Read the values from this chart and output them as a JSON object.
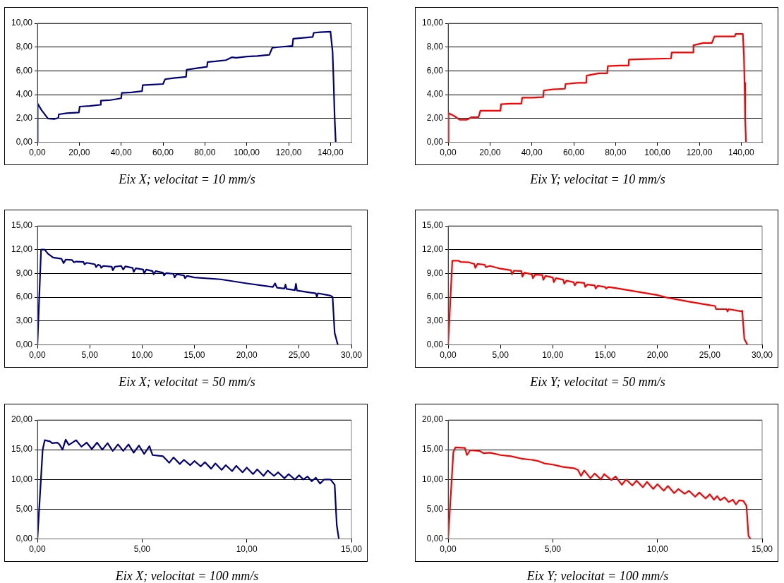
{
  "chart_data": [
    {
      "type": "line",
      "title": "Eix X; velocitat = 10 mm/s",
      "grid": "y",
      "x": [
        0,
        0.1,
        2,
        5,
        8,
        10,
        10.2,
        14,
        19.8,
        20.2,
        25,
        30,
        30.3,
        35,
        40,
        40.3,
        45,
        50,
        50.3,
        55,
        60,
        61,
        65,
        71,
        71.3,
        75,
        81,
        81.3,
        85,
        90,
        93,
        95,
        100,
        105,
        110.8,
        112.2,
        115,
        121.8,
        122.2,
        125,
        131.5,
        132,
        135,
        140,
        141,
        141.5,
        142,
        142.5
      ],
      "series": [
        {
          "color": "#000080",
          "values": [
            0,
            3.25,
            2.7,
            2.0,
            1.95,
            2.05,
            2.35,
            2.45,
            2.5,
            3.0,
            3.05,
            3.15,
            3.5,
            3.55,
            3.7,
            4.15,
            4.2,
            4.3,
            4.8,
            4.85,
            4.9,
            5.3,
            5.4,
            5.5,
            6.1,
            6.2,
            6.35,
            6.75,
            6.8,
            6.9,
            7.15,
            7.1,
            7.2,
            7.25,
            7.35,
            7.95,
            8.0,
            8.1,
            8.7,
            8.75,
            8.85,
            9.2,
            9.25,
            9.3,
            7.6,
            5.0,
            2.0,
            0
          ]
        }
      ],
      "xlim": [
        0,
        150
      ],
      "xticks": [
        {
          "value": 0,
          "label": "0,00"
        },
        {
          "value": 20,
          "label": "20,00"
        },
        {
          "value": 40,
          "label": "40,00"
        },
        {
          "value": 60,
          "label": "60,00"
        },
        {
          "value": 80,
          "label": "80,00"
        },
        {
          "value": 100,
          "label": "100,00"
        },
        {
          "value": 120,
          "label": "120,00"
        },
        {
          "value": 140,
          "label": "140,00"
        }
      ],
      "ylim": [
        0,
        10
      ],
      "yticks": [
        {
          "value": 0,
          "label": "0,00"
        },
        {
          "value": 2,
          "label": "2,00"
        },
        {
          "value": 4,
          "label": "4,00"
        },
        {
          "value": 6,
          "label": "6,00"
        },
        {
          "value": 8,
          "label": "8,00"
        },
        {
          "value": 10,
          "label": "10,00"
        }
      ]
    },
    {
      "type": "line",
      "title": "Eix Y; velocitat = 10 mm/s",
      "grid": "y",
      "x": [
        0,
        0.2,
        3,
        5.5,
        9,
        11,
        14.5,
        15.4,
        20,
        25,
        25.3,
        30,
        35,
        35.4,
        40,
        45.4,
        45.7,
        50,
        55.8,
        56.1,
        62,
        66,
        66.2,
        72,
        76,
        76.3,
        82,
        86.2,
        86.4,
        95,
        106.5,
        106.8,
        112,
        117,
        117.2,
        122,
        126,
        127.2,
        132,
        137,
        137.3,
        140.8,
        141.3,
        141.6,
        141.9,
        142.3
      ],
      "series": [
        {
          "color": "#ff0000",
          "values": [
            0,
            2.45,
            2.2,
            1.9,
            1.9,
            2.1,
            2.1,
            2.65,
            2.65,
            2.65,
            3.2,
            3.25,
            3.25,
            3.75,
            3.75,
            3.8,
            4.35,
            4.45,
            4.5,
            4.9,
            5.0,
            5.0,
            5.6,
            5.8,
            5.8,
            6.4,
            6.45,
            6.45,
            6.95,
            7.0,
            7.05,
            7.55,
            7.55,
            7.55,
            8.15,
            8.35,
            8.35,
            8.9,
            8.9,
            8.9,
            9.1,
            9.1,
            7.3,
            5.0,
            2.0,
            0
          ]
        }
      ],
      "xlim": [
        0,
        150
      ],
      "xticks": [
        {
          "value": 0,
          "label": "0,00"
        },
        {
          "value": 20,
          "label": "20,00"
        },
        {
          "value": 40,
          "label": "40,00"
        },
        {
          "value": 60,
          "label": "60,00"
        },
        {
          "value": 80,
          "label": "80,00"
        },
        {
          "value": 100,
          "label": "100,00"
        },
        {
          "value": 120,
          "label": "120,00"
        },
        {
          "value": 140,
          "label": "140,00"
        }
      ],
      "ylim": [
        0,
        10
      ],
      "yticks": [
        {
          "value": 0,
          "label": "0,00"
        },
        {
          "value": 2,
          "label": "2,00"
        },
        {
          "value": 4,
          "label": "4,00"
        },
        {
          "value": 6,
          "label": "6,00"
        },
        {
          "value": 8,
          "label": "8,00"
        },
        {
          "value": 10,
          "label": "10,00"
        }
      ]
    },
    {
      "type": "line",
      "title": "Eix X; velocitat = 50 mm/s",
      "grid": "y",
      "x": [
        0,
        0.35,
        0.7,
        1.0,
        1.5,
        2.3,
        2.5,
        2.7,
        3.3,
        3.5,
        3.7,
        4.4,
        4.5,
        4.7,
        5.5,
        5.6,
        5.8,
        6.0,
        6.1,
        6.3,
        7.1,
        7.2,
        7.4,
        8.0,
        8.2,
        8.4,
        9.1,
        9.2,
        9.4,
        10.1,
        10.2,
        10.4,
        11.0,
        11.1,
        11.3,
        12.0,
        12.1,
        12.3,
        13.0,
        13.1,
        13.3,
        14.0,
        14.1,
        14.3,
        15,
        17.5,
        20,
        22.5,
        22.7,
        22.9,
        23.6,
        23.7,
        23.8,
        24.6,
        24.7,
        24.8,
        26,
        26.6,
        26.7,
        26.8,
        28,
        28.2,
        28.4,
        28.7
      ],
      "series": [
        {
          "color": "#000080",
          "values": [
            0,
            12,
            12,
            11.5,
            11.0,
            10.85,
            10.3,
            10.75,
            10.7,
            10.4,
            10.5,
            10.45,
            10.15,
            10.35,
            10.15,
            9.8,
            10.1,
            10.0,
            9.7,
            9.95,
            9.85,
            9.4,
            9.85,
            9.95,
            9.5,
            9.9,
            9.7,
            9.2,
            9.65,
            9.5,
            9.0,
            9.5,
            9.3,
            8.9,
            9.3,
            9.1,
            8.75,
            9.05,
            8.95,
            8.5,
            8.9,
            8.75,
            8.4,
            8.7,
            8.5,
            8.26,
            7.75,
            7.3,
            7.75,
            7.2,
            7.1,
            7.6,
            7.05,
            6.9,
            7.7,
            6.85,
            6.6,
            6.5,
            6.05,
            6.5,
            6.2,
            6.05,
            1.5,
            0
          ]
        }
      ],
      "xlim": [
        0,
        30
      ],
      "xticks": [
        {
          "value": 0,
          "label": "0,00"
        },
        {
          "value": 5,
          "label": "5,00"
        },
        {
          "value": 10,
          "label": "10,00"
        },
        {
          "value": 15,
          "label": "15,00"
        },
        {
          "value": 20,
          "label": "20,00"
        },
        {
          "value": 25,
          "label": "25,00"
        },
        {
          "value": 30,
          "label": "30,00"
        }
      ],
      "ylim": [
        0,
        15
      ],
      "yticks": [
        {
          "value": 0,
          "label": "0,00"
        },
        {
          "value": 3,
          "label": "3,00"
        },
        {
          "value": 6,
          "label": "6,00"
        },
        {
          "value": 9,
          "label": "9,00"
        },
        {
          "value": 12,
          "label": "12,00"
        },
        {
          "value": 15,
          "label": "15,00"
        }
      ]
    },
    {
      "type": "line",
      "title": "Eix Y; velocitat = 50 mm/s",
      "grid": "y",
      "x": [
        0,
        0.4,
        1.0,
        1.2,
        2.0,
        2.5,
        2.6,
        2.8,
        3.5,
        3.6,
        4.0,
        5.0,
        6.0,
        6.1,
        6.3,
        7.0,
        7.1,
        7.3,
        8.0,
        8.1,
        8.3,
        9.0,
        9.1,
        9.3,
        10.0,
        10.1,
        10.3,
        11.0,
        11.1,
        11.3,
        12.0,
        12.1,
        12.3,
        13.0,
        13.1,
        13.3,
        14.0,
        14.1,
        14.3,
        15.0,
        15.1,
        15.3,
        16,
        18,
        20,
        21,
        23,
        25,
        25.5,
        25.6,
        26.6,
        26.7,
        26.8,
        28,
        28.1,
        28.3,
        28.6
      ],
      "series": [
        {
          "color": "#ff0000",
          "values": [
            0,
            10.6,
            10.6,
            10.45,
            10.4,
            10.2,
            9.7,
            10.2,
            10.1,
            9.8,
            9.95,
            9.6,
            9.4,
            8.9,
            9.35,
            9.3,
            8.6,
            9.1,
            8.9,
            8.4,
            8.85,
            8.8,
            8.2,
            8.7,
            8.5,
            7.9,
            8.4,
            8.2,
            7.7,
            8.1,
            7.9,
            7.5,
            7.9,
            7.8,
            7.3,
            7.6,
            7.5,
            7.1,
            7.45,
            7.3,
            7.1,
            7.3,
            7.16,
            6.72,
            6.27,
            5.93,
            5.45,
            5.0,
            4.9,
            4.5,
            4.5,
            4.2,
            4.5,
            4.23,
            4.3,
            0.75,
            0
          ]
        }
      ],
      "xlim": [
        0,
        30
      ],
      "xticks": [
        {
          "value": 0,
          "label": "0,00"
        },
        {
          "value": 5,
          "label": "5,00"
        },
        {
          "value": 10,
          "label": "10,00"
        },
        {
          "value": 15,
          "label": "15,00"
        },
        {
          "value": 20,
          "label": "20,00"
        },
        {
          "value": 25,
          "label": "25,00"
        },
        {
          "value": 30,
          "label": "30,00"
        }
      ],
      "ylim": [
        0,
        15
      ],
      "yticks": [
        {
          "value": 0,
          "label": "0,00"
        },
        {
          "value": 3,
          "label": "3,00"
        },
        {
          "value": 6,
          "label": "6,00"
        },
        {
          "value": 9,
          "label": "9,00"
        },
        {
          "value": 12,
          "label": "12,00"
        },
        {
          "value": 15,
          "label": "15,00"
        }
      ]
    },
    {
      "type": "line",
      "title": "Eix X; velocitat = 100 mm/s",
      "grid": "y",
      "x": [
        0,
        0.25,
        0.35,
        0.6,
        0.7,
        0.95,
        1.05,
        1.2,
        1.35,
        1.5,
        1.85,
        2.1,
        2.35,
        2.6,
        2.85,
        3.1,
        3.35,
        3.6,
        3.85,
        4.1,
        4.35,
        4.6,
        4.85,
        5.1,
        5.35,
        5.5,
        6.0,
        6.3,
        6.5,
        6.8,
        7.0,
        7.3,
        7.5,
        7.8,
        8.0,
        8.3,
        8.5,
        8.8,
        9.0,
        9.3,
        9.5,
        9.8,
        10.0,
        10.3,
        10.5,
        10.8,
        11.0,
        11.3,
        11.5,
        11.8,
        12.0,
        12.3,
        12.5,
        12.7,
        12.9,
        13.1,
        13.3,
        13.5,
        13.7,
        14.0,
        14.2,
        14.3,
        14.4
      ],
      "series": [
        {
          "color": "#000080",
          "values": [
            0,
            15.0,
            16.6,
            16.4,
            16.1,
            16.2,
            15.9,
            15.0,
            16.7,
            15.8,
            16.6,
            15.5,
            16.2,
            15.1,
            16.2,
            15.0,
            16.1,
            14.8,
            15.9,
            14.8,
            15.9,
            14.5,
            15.7,
            14.3,
            15.6,
            14.1,
            13.9,
            12.8,
            13.7,
            12.6,
            13.3,
            12.4,
            13.1,
            12.2,
            12.9,
            11.8,
            12.7,
            11.6,
            12.4,
            11.4,
            12.3,
            11.2,
            12.0,
            10.9,
            11.7,
            10.6,
            11.5,
            10.6,
            11.2,
            10.2,
            10.9,
            10.0,
            10.7,
            10.0,
            10.5,
            9.7,
            10.3,
            9.3,
            10.0,
            10.0,
            9.1,
            2.3,
            0
          ]
        }
      ],
      "xlim": [
        0,
        15
      ],
      "xticks": [
        {
          "value": 0,
          "label": "0,00"
        },
        {
          "value": 5,
          "label": "5,00"
        },
        {
          "value": 10,
          "label": "10,00"
        },
        {
          "value": 15,
          "label": "15,00"
        }
      ],
      "ylim": [
        0,
        20
      ],
      "yticks": [
        {
          "value": 0,
          "label": "0,00"
        },
        {
          "value": 5,
          "label": "5,00"
        },
        {
          "value": 10,
          "label": "10,00"
        },
        {
          "value": 15,
          "label": "15,00"
        },
        {
          "value": 20,
          "label": "20,00"
        }
      ]
    },
    {
      "type": "line",
      "title": "Eix Y; velocitat = 100 mm/s",
      "grid": "y",
      "x": [
        0,
        0.25,
        0.35,
        0.8,
        0.9,
        1.05,
        1.5,
        1.7,
        2.0,
        2.5,
        3.0,
        3.5,
        4.0,
        4.3,
        4.6,
        5.0,
        5.5,
        6.0,
        6.2,
        6.35,
        6.5,
        6.8,
        7.0,
        7.3,
        7.45,
        7.8,
        8.0,
        8.3,
        8.5,
        8.8,
        9.0,
        9.3,
        9.5,
        9.8,
        10.0,
        10.3,
        10.5,
        10.8,
        11.0,
        11.3,
        11.5,
        11.8,
        12.0,
        12.3,
        12.5,
        12.7,
        12.85,
        13.0,
        13.2,
        13.4,
        13.6,
        13.75,
        13.9,
        14.1,
        14.25,
        14.35,
        14.45
      ],
      "series": [
        {
          "color": "#ff0000",
          "values": [
            0,
            14.6,
            15.4,
            15.3,
            14.1,
            14.9,
            14.8,
            14.4,
            14.5,
            14.1,
            13.9,
            13.5,
            13.3,
            13.1,
            12.7,
            12.5,
            12.1,
            11.9,
            11.6,
            10.6,
            11.5,
            10.2,
            11.0,
            10.0,
            10.9,
            9.9,
            10.5,
            9.1,
            10.0,
            9.0,
            9.8,
            8.7,
            9.6,
            8.4,
            9.2,
            8.1,
            8.9,
            7.7,
            8.4,
            7.6,
            8.1,
            7.1,
            7.8,
            6.8,
            7.5,
            6.6,
            7.2,
            6.5,
            7.0,
            6.2,
            6.6,
            5.8,
            6.5,
            6.4,
            5.6,
            0.5,
            0
          ]
        }
      ],
      "xlim": [
        0,
        15
      ],
      "xticks": [
        {
          "value": 0,
          "label": "0,00"
        },
        {
          "value": 5,
          "label": "5,00"
        },
        {
          "value": 10,
          "label": "10,00"
        },
        {
          "value": 15,
          "label": "15,00"
        }
      ],
      "ylim": [
        0,
        20
      ],
      "yticks": [
        {
          "value": 0,
          "label": "0,00"
        },
        {
          "value": 5,
          "label": "5,00"
        },
        {
          "value": 10,
          "label": "10,00"
        },
        {
          "value": 15,
          "label": "15,00"
        },
        {
          "value": 20,
          "label": "20,00"
        }
      ]
    }
  ]
}
